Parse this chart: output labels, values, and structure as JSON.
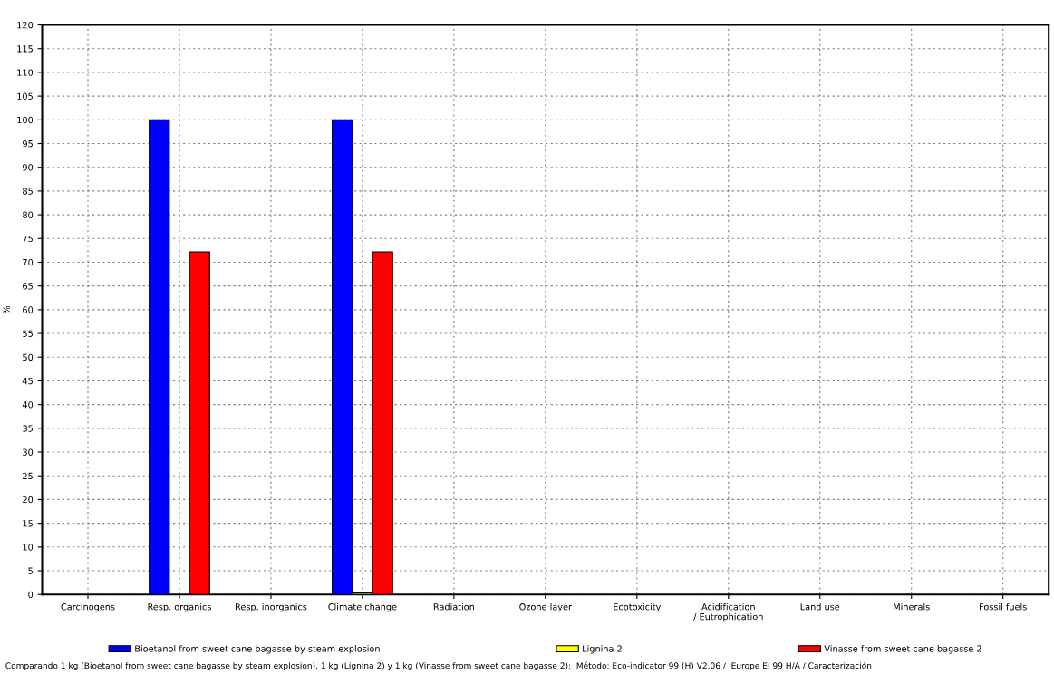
{
  "chart_data": {
    "type": "bar",
    "ylabel": "%",
    "categories": [
      "Carcinogens",
      "Resp. organics",
      "Resp. inorganics",
      "Climate change",
      "Radiation",
      "Ozone layer",
      "Ecotoxicity",
      "Acidification\n/ Eutrophication",
      "Land use",
      "Minerals",
      "Fossil fuels"
    ],
    "series": [
      {
        "name": "Bioetanol from sweet cane bagasse by steam explosion",
        "color": "#0000ff",
        "values": [
          null,
          100,
          null,
          100,
          null,
          null,
          null,
          null,
          null,
          null,
          null
        ]
      },
      {
        "name": "Lignina 2",
        "color": "#ffff00",
        "values": [
          null,
          null,
          null,
          0.3,
          null,
          null,
          null,
          null,
          null,
          null,
          null
        ]
      },
      {
        "name": "Vinasse from sweet cane bagasse 2",
        "color": "#ff0000",
        "values": [
          null,
          72.2,
          null,
          72.2,
          null,
          null,
          null,
          null,
          null,
          null,
          null
        ]
      }
    ],
    "ylim": [
      0,
      120
    ],
    "yticks": [
      0,
      5,
      10,
      15,
      20,
      25,
      30,
      35,
      40,
      45,
      50,
      55,
      60,
      65,
      70,
      75,
      80,
      85,
      90,
      95,
      100,
      105,
      110,
      115,
      120
    ],
    "grid": true,
    "legend": "bottom",
    "annotations": [
      "Comparando 1 kg (Bioetanol from sweet cane bagasse by steam explosion), 1 kg (Lignina 2) y 1 kg (Vinasse from sweet cane bagasse 2);  Método: Eco-indicator 99 (H) V2.06 /  Europe EI 99 H/A / Caracterización"
    ]
  }
}
